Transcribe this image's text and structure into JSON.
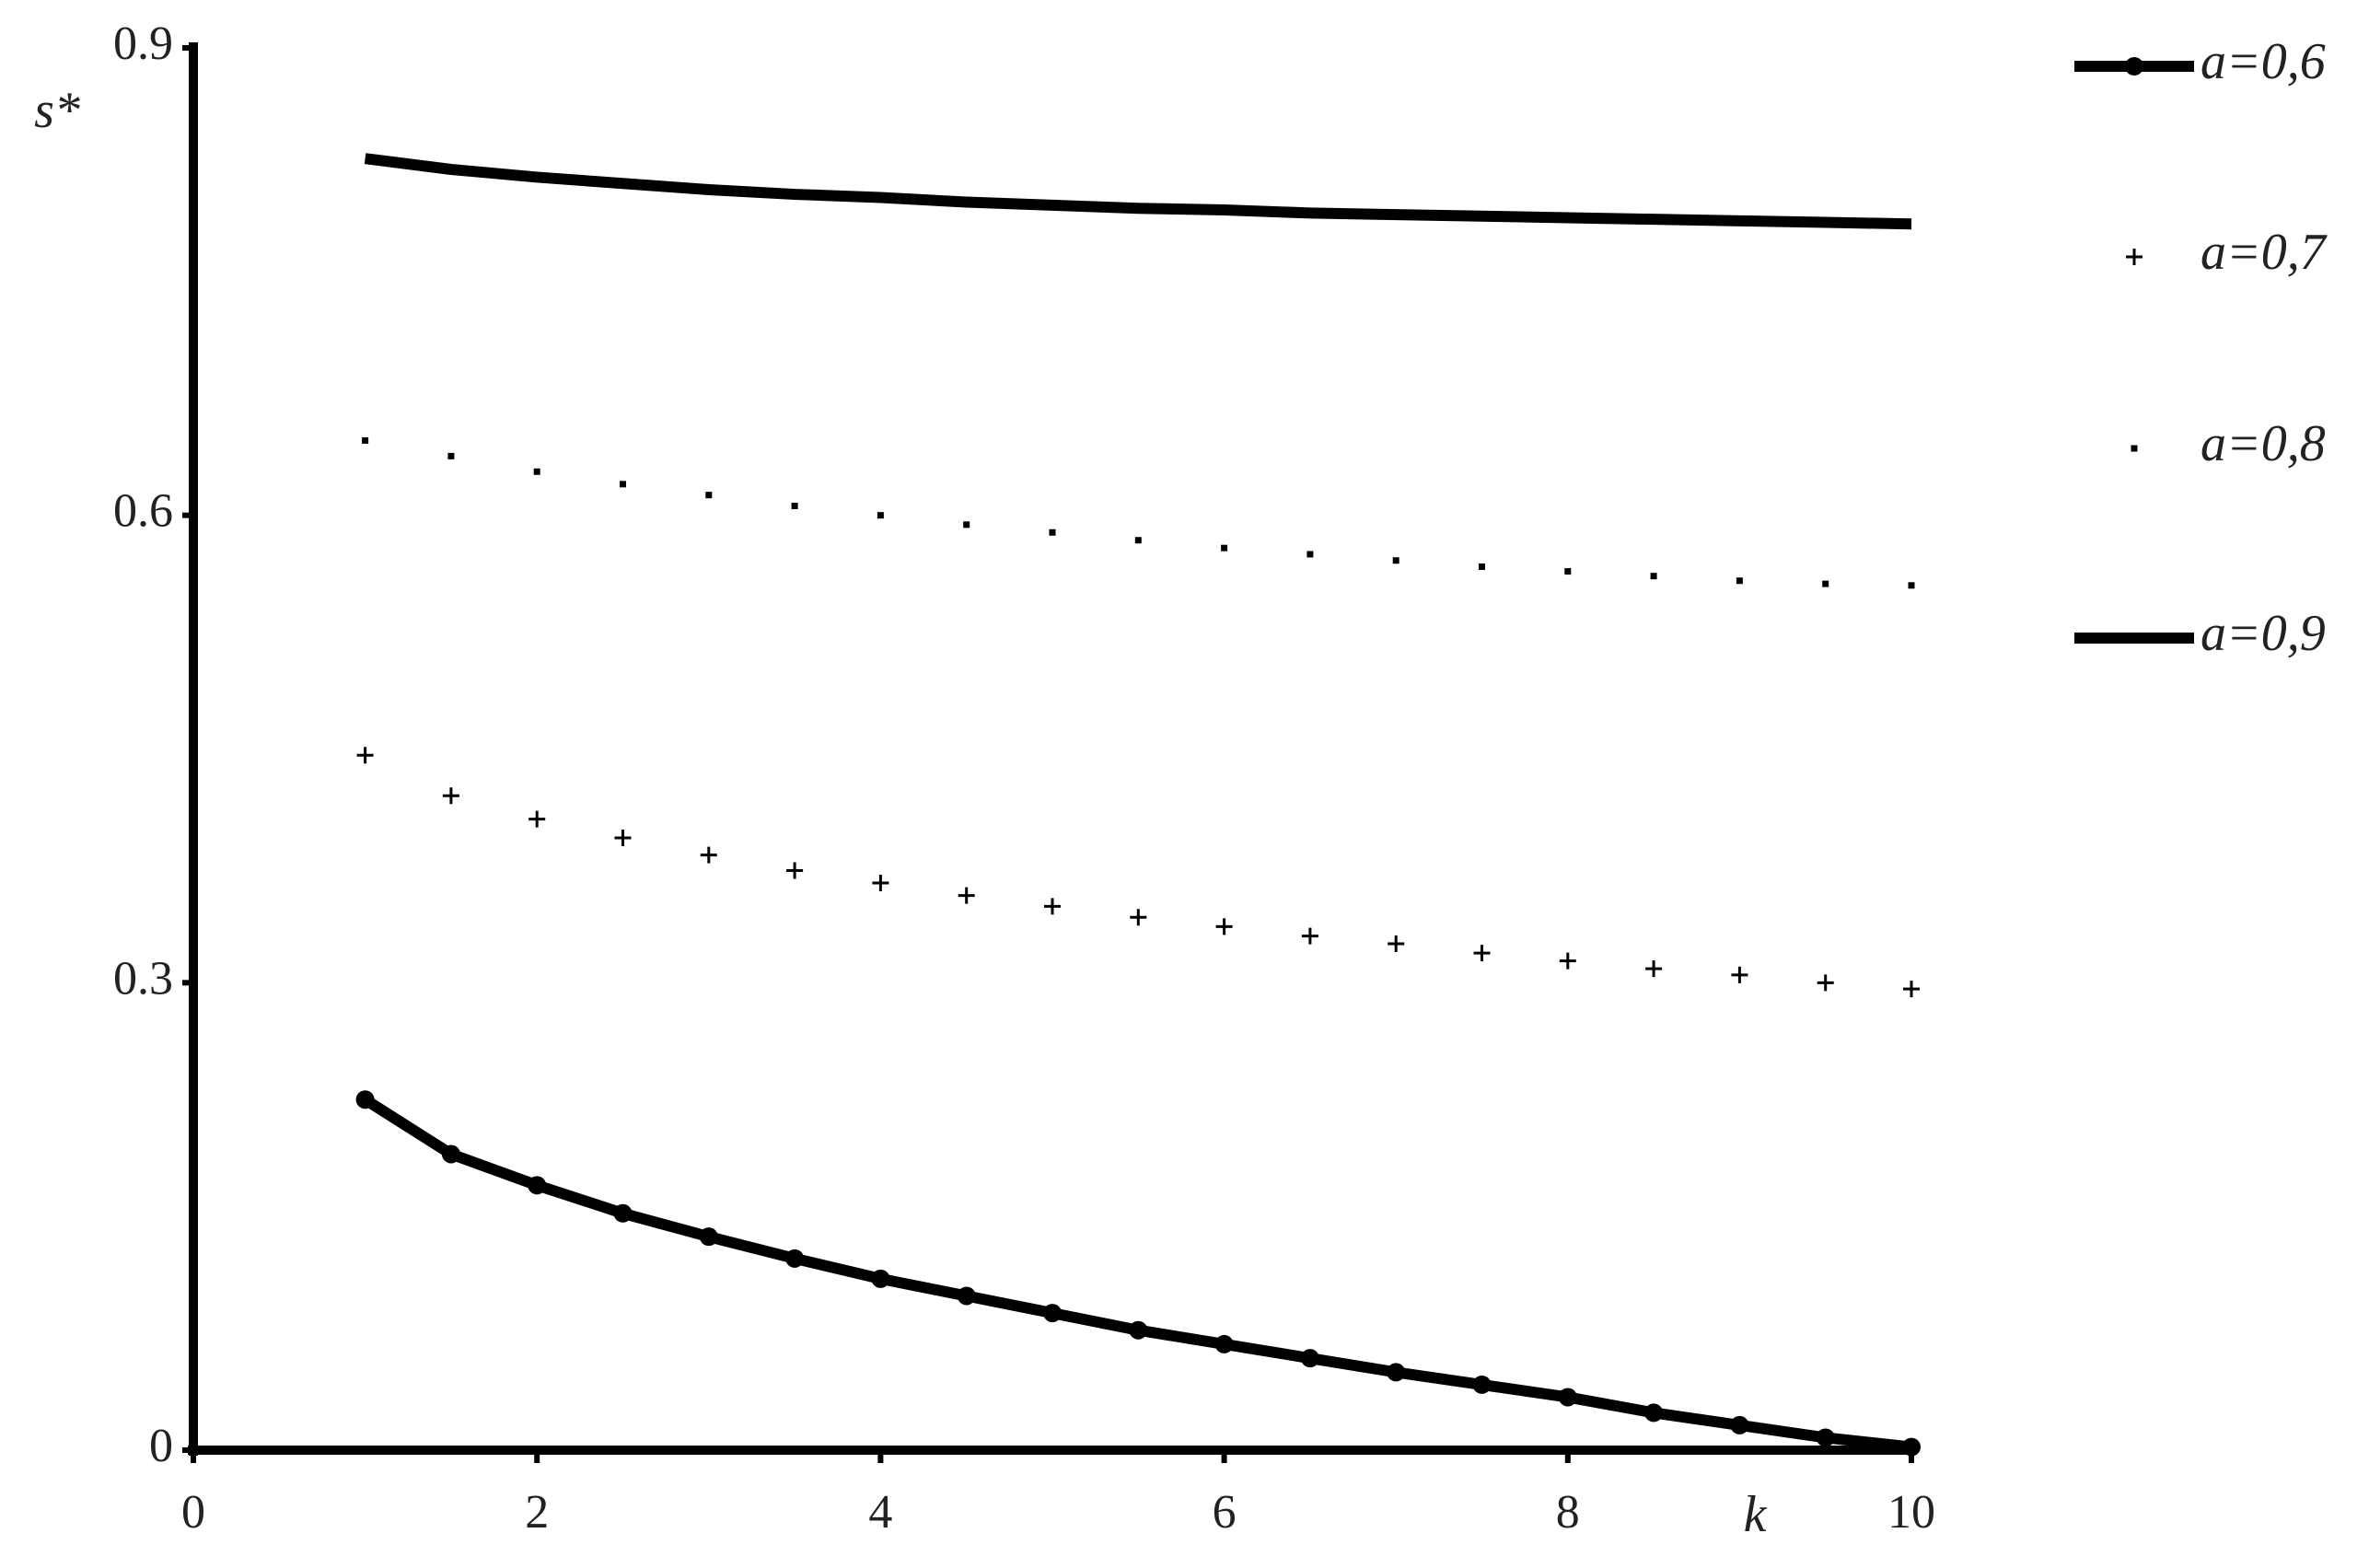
{
  "chart_data": {
    "type": "line",
    "x_label": "k",
    "y_label": "s*",
    "x": [
      1,
      1.5,
      2,
      2.5,
      3,
      3.5,
      4,
      4.5,
      5,
      5.5,
      6,
      6.5,
      7,
      7.5,
      8,
      8.5,
      9,
      9.5,
      10
    ],
    "series": [
      {
        "name": "a=0,6",
        "color": "#000000",
        "style": "line-marker",
        "values": [
          0.225,
          0.19,
          0.17,
          0.152,
          0.137,
          0.123,
          0.11,
          0.099,
          0.088,
          0.077,
          0.068,
          0.059,
          0.05,
          0.042,
          0.034,
          0.024,
          0.016,
          0.008,
          0.002
        ]
      },
      {
        "name": "a=0,7",
        "color": "#000000",
        "style": "plus",
        "values": [
          0.446,
          0.42,
          0.405,
          0.393,
          0.382,
          0.372,
          0.364,
          0.356,
          0.349,
          0.342,
          0.336,
          0.33,
          0.325,
          0.319,
          0.314,
          0.309,
          0.305,
          0.3,
          0.296
        ]
      },
      {
        "name": "a=0,8",
        "color": "#000000",
        "style": "dot",
        "values": [
          0.648,
          0.638,
          0.628,
          0.62,
          0.613,
          0.606,
          0.6,
          0.594,
          0.589,
          0.584,
          0.579,
          0.575,
          0.571,
          0.567,
          0.564,
          0.561,
          0.558,
          0.556,
          0.555
        ]
      },
      {
        "name": "a=0,9",
        "color": "#000000",
        "style": "line",
        "values": [
          0.829,
          0.822,
          0.817,
          0.813,
          0.809,
          0.806,
          0.804,
          0.801,
          0.799,
          0.797,
          0.796,
          0.794,
          0.793,
          0.792,
          0.791,
          0.79,
          0.789,
          0.788,
          0.787
        ]
      }
    ],
    "xlim": [
      0,
      10
    ],
    "ylim": [
      0,
      0.9
    ],
    "xticks": [
      0,
      2,
      4,
      6,
      8,
      10
    ],
    "yticks": [
      0,
      0.3,
      0.6,
      0.9
    ],
    "grid": false,
    "legend": "right"
  }
}
